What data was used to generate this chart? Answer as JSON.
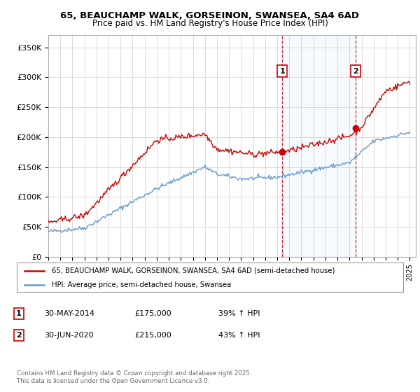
{
  "title": "65, BEAUCHAMP WALK, GORSEINON, SWANSEA, SA4 6AD",
  "subtitle": "Price paid vs. HM Land Registry's House Price Index (HPI)",
  "legend_line1": "65, BEAUCHAMP WALK, GORSEINON, SWANSEA, SA4 6AD (semi-detached house)",
  "legend_line2": "HPI: Average price, semi-detached house, Swansea",
  "footnote": "Contains HM Land Registry data © Crown copyright and database right 2025.\nThis data is licensed under the Open Government Licence v3.0.",
  "marker1_label": "1",
  "marker1_date": "30-MAY-2014",
  "marker1_price": "£175,000",
  "marker1_hpi": "39% ↑ HPI",
  "marker2_label": "2",
  "marker2_date": "30-JUN-2020",
  "marker2_price": "£215,000",
  "marker2_hpi": "43% ↑ HPI",
  "price_color": "#cc0000",
  "hpi_color": "#6699cc",
  "marker_vline_color": "#cc0000",
  "shade_color": "#ddeeff",
  "background_color": "#ffffff",
  "ylim": [
    0,
    370000
  ],
  "yticks": [
    0,
    50000,
    100000,
    150000,
    200000,
    250000,
    300000,
    350000
  ],
  "ytick_labels": [
    "£0",
    "£50K",
    "£100K",
    "£150K",
    "£200K",
    "£250K",
    "£300K",
    "£350K"
  ],
  "xlim_start": 1995,
  "xlim_end": 2025.5,
  "marker1_x": 2014.42,
  "marker2_x": 2020.5,
  "marker1_price_val": 175000,
  "marker2_price_val": 215000
}
